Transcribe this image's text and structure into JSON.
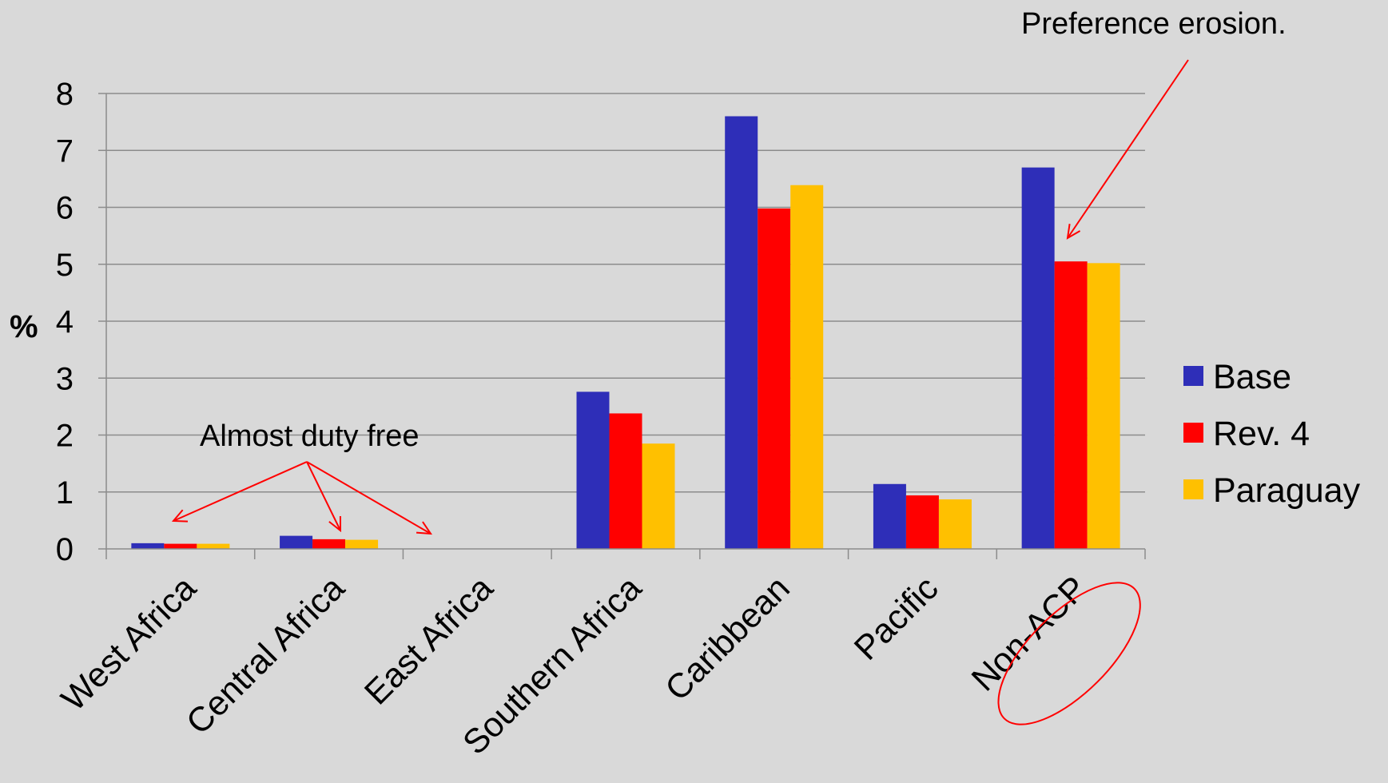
{
  "chart_data": {
    "type": "bar",
    "categories": [
      "West Africa",
      "Central Africa",
      "East Africa",
      "Southern Africa",
      "Caribbean",
      "Pacific",
      "Non-ACP"
    ],
    "series": [
      {
        "name": "Base",
        "color": "#2e2eb8",
        "values": [
          0.1,
          0.23,
          0,
          2.76,
          7.6,
          1.14,
          6.7
        ]
      },
      {
        "name": "Rev. 4",
        "color": "#ff0000",
        "values": [
          0.09,
          0.17,
          0,
          2.38,
          5.98,
          0.94,
          5.05
        ]
      },
      {
        "name": "Paraguay",
        "color": "#ffc000",
        "values": [
          0.09,
          0.16,
          0,
          1.85,
          6.39,
          0.87,
          5.02
        ]
      }
    ],
    "title": "",
    "xlabel": "",
    "ylabel": "%",
    "ylim": [
      0,
      8
    ],
    "yticks": [
      "0",
      "1",
      "2",
      "3",
      "4",
      "5",
      "6",
      "7",
      "8"
    ],
    "grid": true,
    "legend_position": "right",
    "annotations": {
      "preference_erosion": "Preference erosion.",
      "almost_duty_free": "Almost duty free"
    },
    "highlighted_category": "Non-ACP",
    "annotation_color": "#ff0000"
  }
}
